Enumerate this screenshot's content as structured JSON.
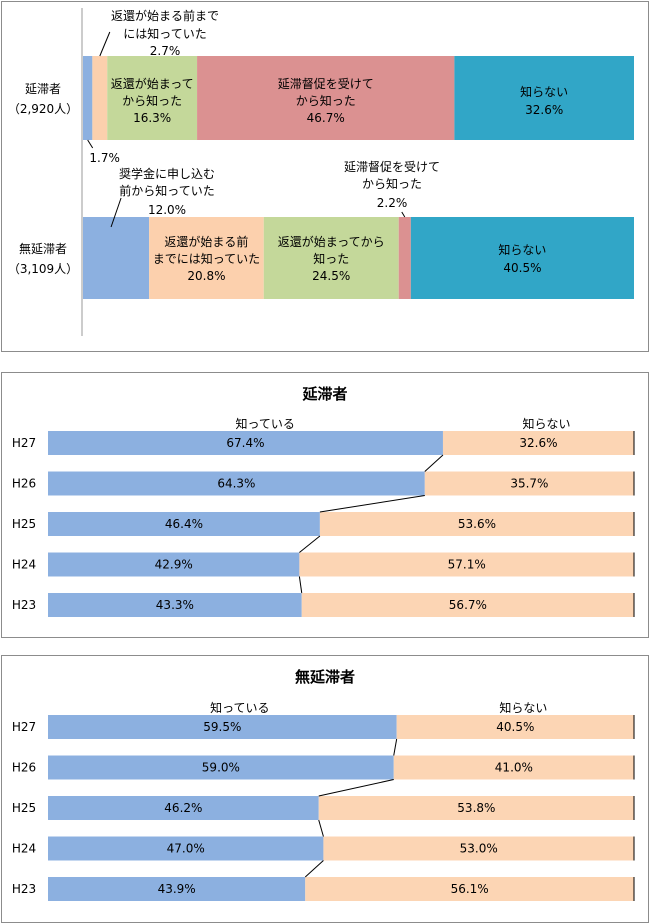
{
  "chart_data": [
    {
      "type": "bar",
      "stacked": true,
      "orientation": "horizontal",
      "categories": [
        "延滞者（2,920人）",
        "無延滞者（3,109人）"
      ],
      "category_lines": [
        [
          "延滞者",
          "（2,920人）"
        ],
        [
          "無延滞者",
          "（3,109人）"
        ]
      ],
      "series": [
        {
          "name": "奨学金に申し込む前から知っていた",
          "label_lines": [
            "奨学金に申し込む",
            "前から知っていた"
          ],
          "color": "#8cb0e0",
          "values": [
            1.7,
            12.0
          ]
        },
        {
          "name": "返還が始まる前までには知っていた",
          "label_lines": [
            "返還が始まる前まで",
            "には知っていた"
          ],
          "label_lines_alt": [
            "返還が始まる前",
            "までには知っていた"
          ],
          "color": "#fcd0ad",
          "values": [
            2.7,
            20.8
          ]
        },
        {
          "name": "返還が始まってから知った",
          "label_lines": [
            "返還が始まって",
            "から知った"
          ],
          "label_lines_alt": [
            "返還が始まってから",
            "知った"
          ],
          "color": "#c4d89a",
          "values": [
            16.3,
            24.5
          ]
        },
        {
          "name": "延滞督促を受けてから知った",
          "label_lines": [
            "延滞督促を受けて",
            "から知った"
          ],
          "color": "#db9191",
          "values": [
            46.7,
            2.2
          ]
        },
        {
          "name": "知らない",
          "label_lines": [
            "知らない"
          ],
          "color": "#31a6c7",
          "values": [
            32.6,
            40.5
          ]
        }
      ],
      "value_labels": [
        [
          "1.7%",
          "2.7%",
          "16.3%",
          "46.7%",
          "32.6%"
        ],
        [
          "12.0%",
          "20.8%",
          "24.5%",
          "2.2%",
          "40.5%"
        ]
      ],
      "xlim": [
        0,
        100
      ]
    },
    {
      "type": "bar",
      "stacked": true,
      "orientation": "horizontal",
      "title": "延滞者",
      "categories": [
        "H27",
        "H26",
        "H25",
        "H24",
        "H23"
      ],
      "series": [
        {
          "name": "知っている",
          "color": "#8cb0e0",
          "values": [
            67.4,
            64.3,
            46.4,
            42.9,
            43.3
          ]
        },
        {
          "name": "知らない",
          "color": "#fcd5b4",
          "values": [
            32.6,
            35.7,
            53.6,
            57.1,
            56.7
          ]
        }
      ],
      "value_labels": [
        [
          "67.4%",
          "64.3%",
          "46.4%",
          "42.9%",
          "43.3%"
        ],
        [
          "32.6%",
          "35.7%",
          "53.6%",
          "57.1%",
          "56.7%"
        ]
      ],
      "xlim": [
        0,
        100
      ]
    },
    {
      "type": "bar",
      "stacked": true,
      "orientation": "horizontal",
      "title": "無延滞者",
      "categories": [
        "H27",
        "H26",
        "H25",
        "H24",
        "H23"
      ],
      "series": [
        {
          "name": "知っている",
          "color": "#8cb0e0",
          "values": [
            59.5,
            59.0,
            46.2,
            47.0,
            43.9
          ]
        },
        {
          "name": "知らない",
          "color": "#fcd5b4",
          "values": [
            40.5,
            41.0,
            53.8,
            53.0,
            56.1
          ]
        }
      ],
      "value_labels": [
        [
          "59.5%",
          "59.0%",
          "46.2%",
          "47.0%",
          "43.9%"
        ],
        [
          "40.5%",
          "41.0%",
          "53.8%",
          "53.0%",
          "56.1%"
        ]
      ],
      "xlim": [
        0,
        100
      ]
    }
  ]
}
